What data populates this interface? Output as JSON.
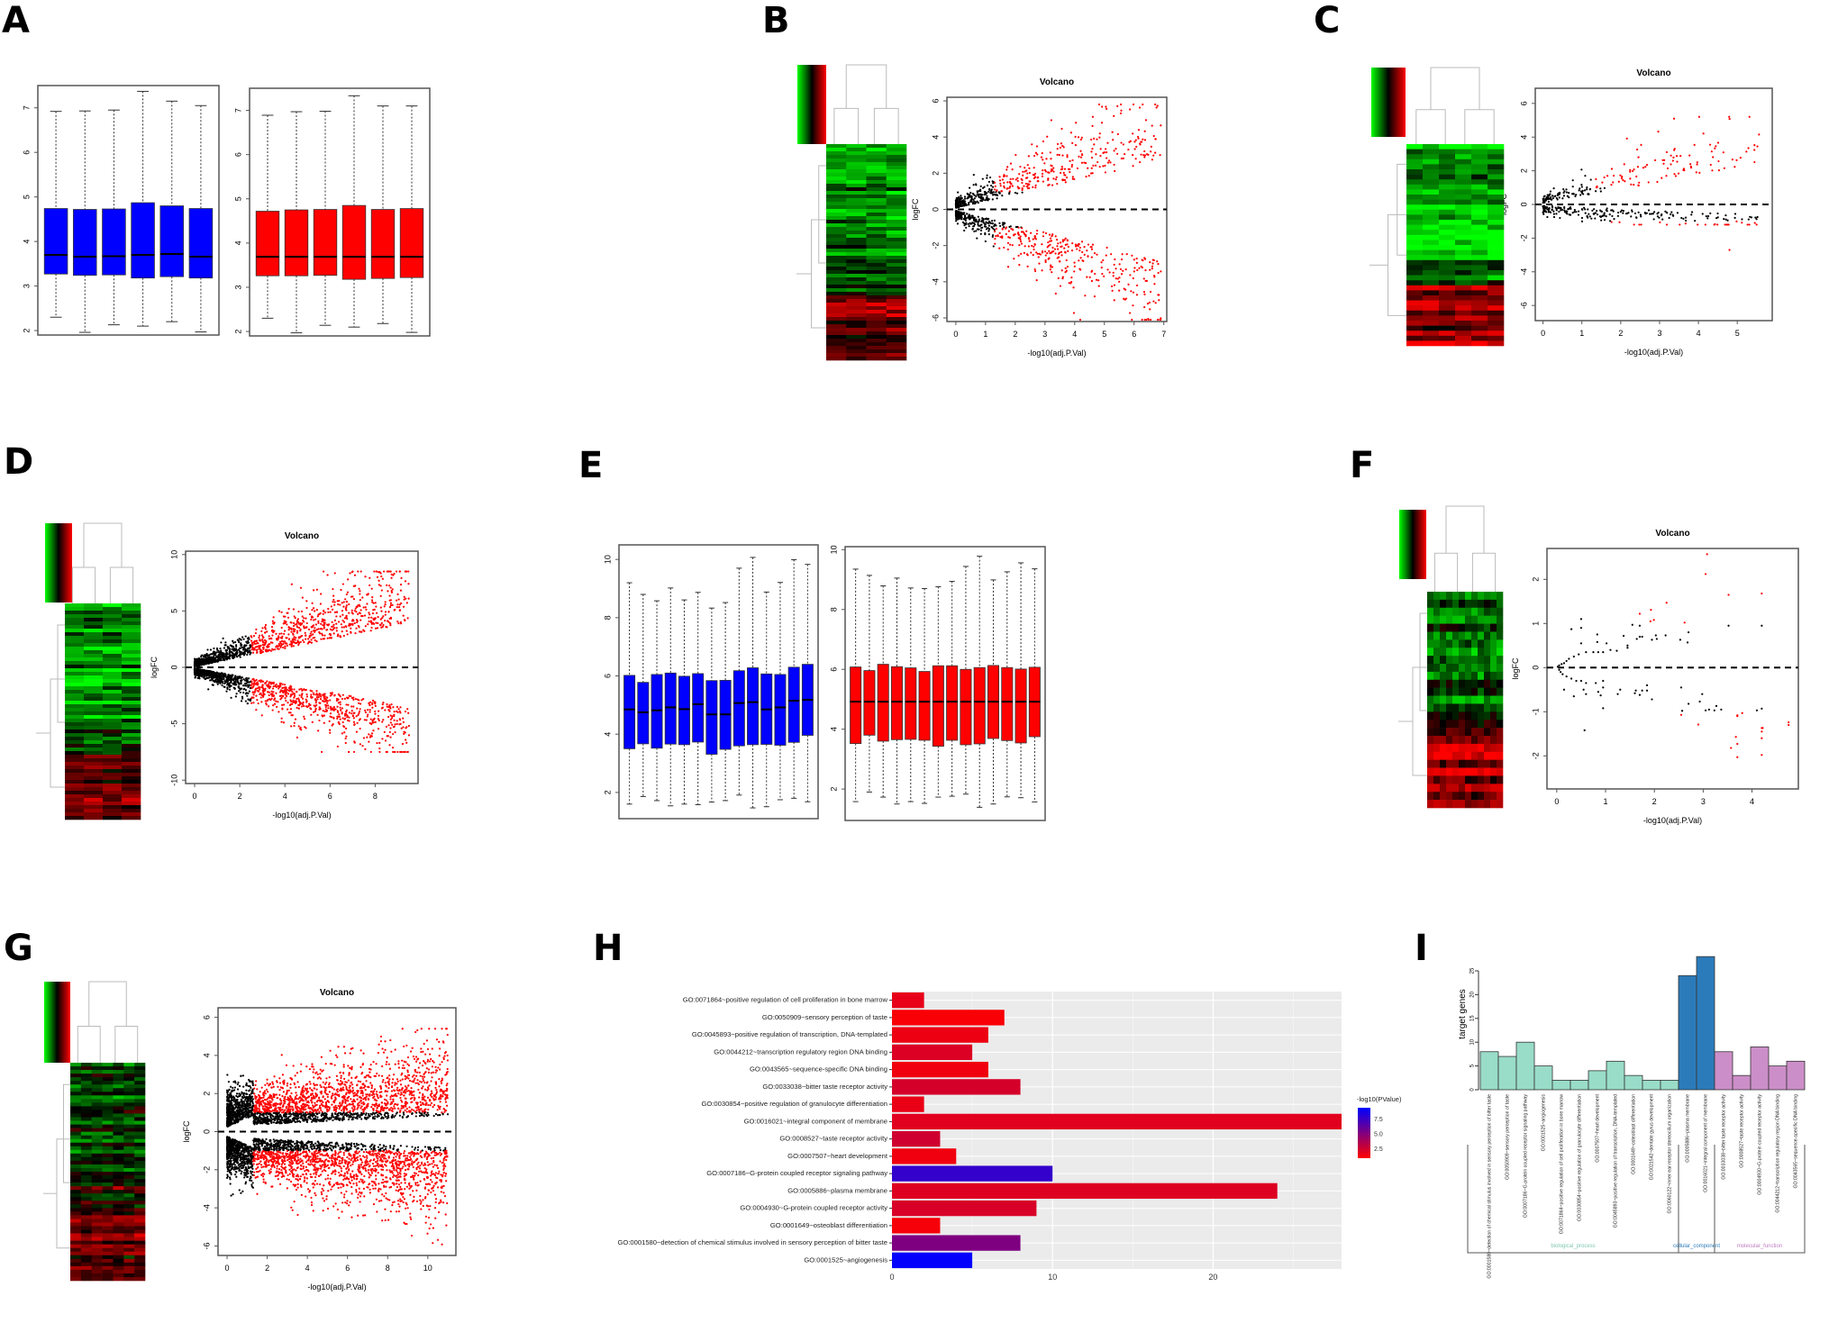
{
  "panels": {
    "A": "A",
    "B": "B",
    "C": "C",
    "D": "D",
    "E": "E",
    "F": "F",
    "G": "G",
    "H": "H",
    "I": "I"
  },
  "colors": {
    "box_normal": "#0000ff",
    "box_tumor": "#ff0000",
    "sig_point": "#ff0000",
    "nonsig_point": "#000000",
    "heat_low": "#00ff00",
    "heat_mid": "#000000",
    "heat_high": "#ff0000",
    "go_low": "#ff0000",
    "go_high": "#0000ff",
    "bp": "#99dcc8",
    "cc": "#2b7bba",
    "mf": "#cc8ec8",
    "grid_bg": "#ebebeb"
  },
  "chart_data": [
    {
      "id": "A-left",
      "type": "box",
      "panel": "A",
      "fill": "blue",
      "ylim": [
        1.9,
        7.5
      ],
      "yticks": [
        2,
        3,
        4,
        5,
        6,
        7
      ],
      "boxes": [
        {
          "min": 2.3,
          "q1": 3.27,
          "median": 3.7,
          "q3": 4.74,
          "max": 6.92
        },
        {
          "min": 1.96,
          "q1": 3.24,
          "median": 3.66,
          "q3": 4.72,
          "max": 6.93
        },
        {
          "min": 2.13,
          "q1": 3.25,
          "median": 3.67,
          "q3": 4.73,
          "max": 6.95
        },
        {
          "min": 2.1,
          "q1": 3.18,
          "median": 3.7,
          "q3": 4.87,
          "max": 7.37
        },
        {
          "min": 2.2,
          "q1": 3.21,
          "median": 3.72,
          "q3": 4.8,
          "max": 7.15
        },
        {
          "min": 1.97,
          "q1": 3.18,
          "median": 3.66,
          "q3": 4.74,
          "max": 7.05
        }
      ]
    },
    {
      "id": "A-right",
      "type": "box",
      "panel": "A",
      "fill": "red",
      "ylim": [
        1.9,
        7.5
      ],
      "yticks": [
        2,
        3,
        4,
        5,
        6,
        7
      ],
      "boxes": [
        {
          "min": 2.3,
          "q1": 3.26,
          "median": 3.69,
          "q3": 4.72,
          "max": 6.89
        },
        {
          "min": 1.97,
          "q1": 3.26,
          "median": 3.69,
          "q3": 4.75,
          "max": 6.97
        },
        {
          "min": 2.14,
          "q1": 3.27,
          "median": 3.69,
          "q3": 4.76,
          "max": 6.98
        },
        {
          "min": 2.1,
          "q1": 3.18,
          "median": 3.69,
          "q3": 4.85,
          "max": 7.33
        },
        {
          "min": 2.18,
          "q1": 3.2,
          "median": 3.69,
          "q3": 4.76,
          "max": 7.1
        },
        {
          "min": 1.98,
          "q1": 3.22,
          "median": 3.69,
          "q3": 4.78,
          "max": 7.1
        }
      ]
    },
    {
      "id": "B-volcano",
      "type": "scatter",
      "panel": "B",
      "title": "Volcano",
      "xlabel": "-log10(adj.P.Val)",
      "ylabel": "logFC",
      "xlim": [
        -0.3,
        7.1
      ],
      "ylim": [
        -6.2,
        6.2
      ],
      "xticks": [
        0,
        1,
        2,
        3,
        4,
        5,
        6,
        7
      ],
      "yticks": [
        -6,
        -4,
        -2,
        0,
        2,
        4,
        6
      ],
      "shape": {
        "xmax": 6.9,
        "spread_up": 5.8,
        "spread_down": 6.1,
        "n": 1100,
        "sig_x": 1.3,
        "sig_y": 1.0,
        "seed": 11
      },
      "hline": 0
    },
    {
      "id": "C-volcano",
      "type": "scatter",
      "panel": "C",
      "title": "Volcano",
      "xlabel": "-log10(adj.P.Val)",
      "ylabel": "logFC",
      "xlim": [
        -0.2,
        5.9
      ],
      "ylim": [
        -6.9,
        6.9
      ],
      "xticks": [
        0,
        1,
        2,
        3,
        4,
        5
      ],
      "yticks": [
        -6,
        -4,
        -2,
        0,
        2,
        4,
        6
      ],
      "shape": {
        "xmax": 5.6,
        "spread_up": 5.2,
        "spread_down": 1.2,
        "n": 420,
        "sig_x": 1.3,
        "sig_y": 1.0,
        "seed": 23
      },
      "extra_points": [
        [
          4.8,
          -2.7
        ]
      ],
      "hline": 0
    },
    {
      "id": "D-volcano",
      "type": "scatter",
      "panel": "D",
      "title": "Volcano",
      "xlabel": "-log10(adj.P.Val)",
      "ylabel": "logFC",
      "xlim": [
        -0.4,
        9.9
      ],
      "ylim": [
        -10.3,
        10.3
      ],
      "xticks": [
        0,
        2,
        4,
        6,
        8
      ],
      "yticks": [
        -10,
        -5,
        0,
        5,
        10
      ],
      "shape": {
        "xmax": 9.5,
        "spread_up": 8.5,
        "spread_down": 7.5,
        "n": 2600,
        "sig_x": 2.5,
        "sig_y": 1.0,
        "seed": 37
      },
      "hline": 0
    },
    {
      "id": "E-left",
      "type": "box",
      "panel": "E",
      "fill": "blue",
      "ylim": [
        1.1,
        10.5
      ],
      "yticks": [
        2,
        4,
        6,
        8,
        10
      ],
      "boxes": [
        {
          "min": 1.6,
          "q1": 3.5,
          "median": 4.85,
          "q3": 6.02,
          "max": 9.2
        },
        {
          "min": 1.86,
          "q1": 3.67,
          "median": 4.75,
          "q3": 5.78,
          "max": 8.8
        },
        {
          "min": 1.72,
          "q1": 3.52,
          "median": 4.82,
          "q3": 6.05,
          "max": 8.58
        },
        {
          "min": 1.54,
          "q1": 3.66,
          "median": 4.92,
          "q3": 6.1,
          "max": 9.02
        },
        {
          "min": 1.6,
          "q1": 3.64,
          "median": 4.86,
          "q3": 5.99,
          "max": 8.61
        },
        {
          "min": 1.58,
          "q1": 3.73,
          "median": 5.03,
          "q3": 6.08,
          "max": 8.87
        },
        {
          "min": 1.67,
          "q1": 3.31,
          "median": 4.68,
          "q3": 5.84,
          "max": 8.33
        },
        {
          "min": 1.72,
          "q1": 3.48,
          "median": 4.68,
          "q3": 5.85,
          "max": 8.52
        },
        {
          "min": 1.91,
          "q1": 3.6,
          "median": 5.07,
          "q3": 6.18,
          "max": 9.7
        },
        {
          "min": 1.47,
          "q1": 3.64,
          "median": 5.1,
          "q3": 6.28,
          "max": 10.07
        },
        {
          "min": 1.51,
          "q1": 3.65,
          "median": 4.85,
          "q3": 6.07,
          "max": 8.88
        },
        {
          "min": 1.75,
          "q1": 3.62,
          "median": 4.92,
          "q3": 6.05,
          "max": 9.21
        },
        {
          "min": 1.8,
          "q1": 3.72,
          "median": 5.15,
          "q3": 6.3,
          "max": 9.99
        },
        {
          "min": 1.68,
          "q1": 3.96,
          "median": 5.18,
          "q3": 6.4,
          "max": 9.83
        }
      ]
    },
    {
      "id": "E-right",
      "type": "box",
      "panel": "E",
      "fill": "red",
      "ylim": [
        0.95,
        10.1
      ],
      "yticks": [
        2,
        4,
        6,
        8,
        10
      ],
      "boxes": [
        {
          "min": 1.58,
          "q1": 3.52,
          "median": 4.92,
          "q3": 6.08,
          "max": 9.35
        },
        {
          "min": 1.9,
          "q1": 3.8,
          "median": 4.92,
          "q3": 5.96,
          "max": 9.14
        },
        {
          "min": 1.73,
          "q1": 3.6,
          "median": 4.92,
          "q3": 6.17,
          "max": 8.79
        },
        {
          "min": 1.5,
          "q1": 3.65,
          "median": 4.92,
          "q3": 6.09,
          "max": 9.05
        },
        {
          "min": 1.58,
          "q1": 3.66,
          "median": 4.92,
          "q3": 6.05,
          "max": 8.72
        },
        {
          "min": 1.52,
          "q1": 3.63,
          "median": 4.92,
          "q3": 5.93,
          "max": 8.7
        },
        {
          "min": 1.73,
          "q1": 3.43,
          "median": 4.92,
          "q3": 6.12,
          "max": 8.76
        },
        {
          "min": 1.76,
          "q1": 3.63,
          "median": 4.92,
          "q3": 6.12,
          "max": 8.94
        },
        {
          "min": 1.83,
          "q1": 3.48,
          "median": 4.92,
          "q3": 6.0,
          "max": 9.44
        },
        {
          "min": 1.39,
          "q1": 3.51,
          "median": 4.92,
          "q3": 6.06,
          "max": 9.78
        },
        {
          "min": 1.5,
          "q1": 3.69,
          "median": 4.92,
          "q3": 6.13,
          "max": 8.99
        },
        {
          "min": 1.74,
          "q1": 3.62,
          "median": 4.92,
          "q3": 6.06,
          "max": 9.26
        },
        {
          "min": 1.71,
          "q1": 3.54,
          "median": 4.92,
          "q3": 6.01,
          "max": 9.56
        },
        {
          "min": 1.57,
          "q1": 3.75,
          "median": 4.92,
          "q3": 6.07,
          "max": 9.36
        }
      ]
    },
    {
      "id": "F-volcano",
      "type": "scatter",
      "panel": "F",
      "title": "Volcano",
      "xlabel": "-log10(adj.P.Val)",
      "ylabel": "logFC",
      "xlim": [
        -0.2,
        4.95
      ],
      "ylim": [
        -2.75,
        2.7
      ],
      "xticks": [
        0,
        1,
        2,
        3,
        4
      ],
      "yticks": [
        -2,
        -1,
        0,
        1,
        2
      ],
      "points_black": [
        [
          0.5,
          1.1
        ],
        [
          0.5,
          0.9
        ],
        [
          0.3,
          0.87
        ],
        [
          0.5,
          0.55
        ],
        [
          0.83,
          0.75
        ],
        [
          0.83,
          0.58
        ],
        [
          1.02,
          0.55
        ],
        [
          1.37,
          0.72
        ],
        [
          1.55,
          0.97
        ],
        [
          1.7,
          0.95
        ],
        [
          1.7,
          0.7
        ],
        [
          1.75,
          0.7
        ],
        [
          1.64,
          0.65
        ],
        [
          1.95,
          0.63
        ],
        [
          2.03,
          0.73
        ],
        [
          2.05,
          0.65
        ],
        [
          2.23,
          0.73
        ],
        [
          2.53,
          0.63
        ],
        [
          2.7,
          0.8
        ],
        [
          2.68,
          0.57
        ],
        [
          3.52,
          0.95
        ],
        [
          4.2,
          0.95
        ],
        [
          1.45,
          0.45
        ],
        [
          1.45,
          0.5
        ],
        [
          1.23,
          0.38
        ],
        [
          1.1,
          0.4
        ],
        [
          0.95,
          0.35
        ],
        [
          0.85,
          0.35
        ],
        [
          0.75,
          0.35
        ],
        [
          0.6,
          0.35
        ],
        [
          0.45,
          0.3
        ],
        [
          0.35,
          0.25
        ],
        [
          0.25,
          0.2
        ],
        [
          0.2,
          0.15
        ],
        [
          0.15,
          0.1
        ],
        [
          0.1,
          0.08
        ],
        [
          0.05,
          0.05
        ],
        [
          0.02,
          0.02
        ],
        [
          0.05,
          -0.05
        ],
        [
          0.08,
          -0.1
        ],
        [
          0.12,
          -0.15
        ],
        [
          0.2,
          -0.2
        ],
        [
          0.3,
          -0.25
        ],
        [
          0.4,
          -0.3
        ],
        [
          0.5,
          -0.3
        ],
        [
          0.6,
          -0.35
        ],
        [
          0.8,
          -0.35
        ],
        [
          0.95,
          -0.3
        ],
        [
          0.15,
          -0.5
        ],
        [
          0.35,
          -0.65
        ],
        [
          0.55,
          -0.5
        ],
        [
          0.6,
          -0.6
        ],
        [
          0.85,
          -0.55
        ],
        [
          0.9,
          -0.63
        ],
        [
          0.95,
          -0.45
        ],
        [
          1.25,
          -0.6
        ],
        [
          1.3,
          -0.5
        ],
        [
          1.6,
          -0.58
        ],
        [
          1.62,
          -0.52
        ],
        [
          1.7,
          -0.62
        ],
        [
          1.75,
          -0.52
        ],
        [
          1.85,
          -0.4
        ],
        [
          1.85,
          -0.52
        ],
        [
          1.95,
          -0.72
        ],
        [
          2.55,
          -0.45
        ],
        [
          2.7,
          -0.82
        ],
        [
          2.93,
          -0.77
        ],
        [
          2.98,
          -0.6
        ],
        [
          3.05,
          -0.97
        ],
        [
          3.12,
          -0.95
        ],
        [
          3.23,
          -0.97
        ],
        [
          3.27,
          -0.87
        ],
        [
          3.37,
          -0.95
        ],
        [
          4.1,
          -0.97
        ],
        [
          4.2,
          -0.93
        ],
        [
          0.57,
          -1.42
        ],
        [
          0.95,
          -0.92
        ],
        [
          2.57,
          -0.98
        ]
      ],
      "points_red": [
        [
          3.08,
          2.57
        ],
        [
          3.05,
          2.12
        ],
        [
          3.52,
          1.65
        ],
        [
          4.2,
          1.68
        ],
        [
          2.25,
          1.47
        ],
        [
          1.7,
          1.22
        ],
        [
          1.93,
          1.31
        ],
        [
          1.92,
          1.05
        ],
        [
          1.99,
          1.08
        ],
        [
          2.62,
          1.02
        ],
        [
          2.55,
          -1.07
        ],
        [
          2.9,
          -1.29
        ],
        [
          3.7,
          -1.08
        ],
        [
          3.7,
          -1.1
        ],
        [
          3.8,
          -1.03
        ],
        [
          4.75,
          -1.24
        ],
        [
          4.75,
          -1.3
        ],
        [
          4.2,
          -1.37
        ],
        [
          4.22,
          -1.37
        ],
        [
          4.2,
          -1.45
        ],
        [
          4.2,
          -1.6
        ],
        [
          4.2,
          -1.98
        ],
        [
          3.67,
          -1.57
        ],
        [
          3.7,
          -1.73
        ],
        [
          3.57,
          -1.82
        ],
        [
          3.7,
          -2.03
        ]
      ],
      "hline": 0
    },
    {
      "id": "G-volcano",
      "type": "scatter",
      "panel": "G",
      "title": "Volcano",
      "xlabel": "-log10(adj.P.Val)",
      "ylabel": "logFC",
      "xlim": [
        -0.45,
        11.4
      ],
      "ylim": [
        -6.5,
        6.5
      ],
      "xticks": [
        0,
        2,
        4,
        6,
        8,
        10
      ],
      "yticks": [
        -6,
        -4,
        -2,
        0,
        2,
        4,
        6
      ],
      "shape": {
        "xmax": 11,
        "spread_up": 5.4,
        "spread_down": 6.3,
        "n": 5200,
        "sig_x": 1.3,
        "sig_y": 1.0,
        "seed": 53,
        "wide": true
      },
      "hline": 0
    },
    {
      "id": "H-go-bar",
      "type": "bar",
      "panel": "H",
      "orientation": "horizontal",
      "title": "",
      "xlabel": "",
      "ylabel": "",
      "xlim": [
        0,
        28
      ],
      "xticks": [
        0,
        10,
        20
      ],
      "legend_title": "-log10(PValue)",
      "legend_ticks": [
        2.5,
        5.0,
        7.5
      ],
      "legend_range": [
        1,
        9.5
      ],
      "legend_position": "right",
      "categories": [
        "GO:0071864~positive regulation of cell proliferation in bone marrow",
        "GO:0050909~sensory perception of taste",
        "GO:0045893~positive regulation of transcription, DNA-templated",
        "GO:0044212~transcription regulatory region DNA binding",
        "GO:0043565~sequence-specific DNA binding",
        "GO:0033038~bitter taste receptor activity",
        "GO:0030854~positive regulation of granulocyte differentiation",
        "GO:0016021~integral component of membrane",
        "GO:0008527~taste receptor activity",
        "GO:0007507~heart development",
        "GO:0007186~G-protein coupled receptor signaling pathway",
        "GO:0005886~plasma membrane",
        "GO:0004930~G-protein coupled receptor activity",
        "GO:0001649~osteoblast differentiation",
        "GO:0001580~detection of chemical stimulus involved in sensory perception of bitter taste",
        "GO:0001525~angiogenesis"
      ],
      "values": [
        2,
        7,
        6,
        5,
        6,
        8,
        2,
        28,
        3,
        4,
        10,
        24,
        9,
        3,
        8,
        5
      ],
      "color_values": [
        1.8,
        1.2,
        1.6,
        2.2,
        1.5,
        2.4,
        1.7,
        2.0,
        2.6,
        1.5,
        7.8,
        2.1,
        2.3,
        1.3,
        5.3,
        9.4
      ]
    },
    {
      "id": "I-go-counts",
      "type": "bar",
      "panel": "I",
      "ylabel": "target genes",
      "ylim": [
        0,
        25
      ],
      "yticks": [
        0,
        5,
        10,
        15,
        20,
        25
      ],
      "categories": [
        "GO:0001580~detection of chemical stimulus involved in sensory perception of bitter taste",
        "GO:0050909~sensory perception of taste",
        "GO:0007186~G-protein coupled receptor signaling pathway",
        "GO:0001525~angiogenesis",
        "GO:0071864~positive regulation of cell proliferation in bone marrow",
        "GO:0030854~positive regulation of granulocyte differentiation",
        "GO:0007507~heart development",
        "GO:0045893~positive regulation of transcription, DNA-templated",
        "GO:0001649~osteoblast differentiation",
        "GO:0021542~dentate gyrus development",
        "GO:0060122~inner ear receptor stereocilium organization",
        "GO:0005886~plasma membrane",
        "GO:0016021~integral component of membrane",
        "GO:0033038~bitter taste receptor activity",
        "GO:0008527~taste receptor activity",
        "GO:0004930~G-protein coupled receptor activity",
        "GO:0044212~transcription regulatory region DNA binding",
        "GO:0043565~sequence-specific DNA binding"
      ],
      "values": [
        8,
        7,
        10,
        5,
        2,
        2,
        4,
        6,
        3,
        2,
        2,
        24,
        28,
        8,
        3,
        9,
        5,
        6
      ],
      "groups": [
        "bp",
        "bp",
        "bp",
        "bp",
        "bp",
        "bp",
        "bp",
        "bp",
        "bp",
        "bp",
        "bp",
        "cc",
        "cc",
        "mf",
        "mf",
        "mf",
        "mf",
        "mf"
      ],
      "group_labels": {
        "bp": "biological_process",
        "cc": "cellular_component",
        "mf": "molecular_function"
      }
    }
  ]
}
